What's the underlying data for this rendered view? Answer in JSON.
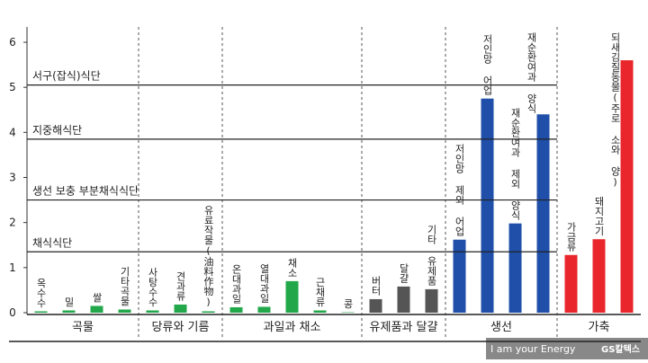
{
  "chart_data": {
    "type": "bar",
    "ylim": [
      0,
      6
    ],
    "yticks": [
      0,
      1,
      2,
      3,
      4,
      5,
      6
    ],
    "groups": [
      {
        "name": "곡물",
        "color": "#22a84a",
        "categories": [
          "옥수수",
          "밀",
          "쌀",
          "기타곡물"
        ],
        "values": [
          0.03,
          0.05,
          0.15,
          0.07
        ]
      },
      {
        "name": "당류와 기름",
        "color": "#22a84a",
        "categories": [
          "사탕수수",
          "견과류",
          "유료작물(油料作物)"
        ],
        "values": [
          0.05,
          0.18,
          0.03
        ]
      },
      {
        "name": "과일과 채소",
        "color": "#22a84a",
        "categories": [
          "온대과일",
          "열대과일",
          "채소",
          "근채류",
          "콩"
        ],
        "values": [
          0.12,
          0.13,
          0.7,
          0.05,
          0.01
        ]
      },
      {
        "name": "유제품과 달걀",
        "color": "#555555",
        "categories": [
          "버터",
          "달걀",
          "기타 유제품"
        ],
        "values": [
          0.3,
          0.58,
          0.52
        ]
      },
      {
        "name": "생선",
        "color": "#1f4fa8",
        "categories": [
          "저인망 제외 어업",
          "저인망 어업",
          "재순환여과 제외 양식",
          "재순환여과 양식"
        ],
        "values": [
          1.62,
          4.75,
          1.98,
          4.4
        ]
      },
      {
        "name": "가축",
        "color": "#e8262b",
        "categories": [
          "가금류",
          "돼지고기",
          "되새김질동물(주로 소와 양)"
        ],
        "values": [
          1.28,
          1.63,
          5.6
        ]
      }
    ],
    "reference_lines": [
      {
        "label": "서구(잡식)식단",
        "value": 5.05
      },
      {
        "label": "지중해식단",
        "value": 3.85
      },
      {
        "label": "생선 보충 부분채식식단",
        "value": 2.5
      },
      {
        "label": "채식식단",
        "value": 1.35
      }
    ],
    "footer": "I am your Energy",
    "footer_brand": "GS칼텍스"
  }
}
